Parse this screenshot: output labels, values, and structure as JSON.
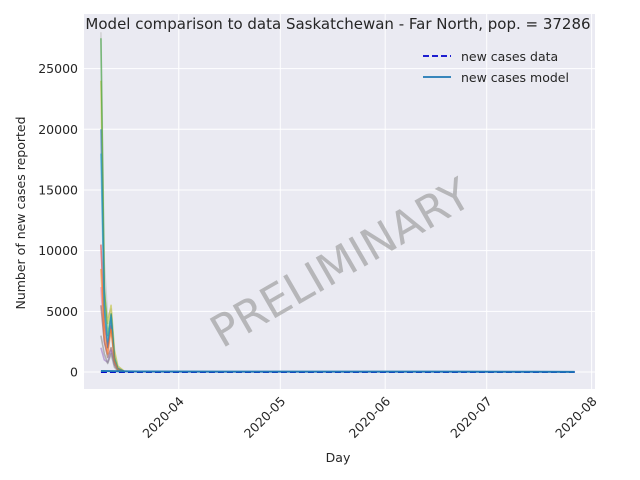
{
  "chart_data": {
    "type": "line",
    "title": "Model comparison to data Saskatchewan - Far North, pop. = 37286",
    "xlabel": "Day",
    "ylabel": "Number of new cases reported",
    "xlim": [
      "2020-03-04",
      "2020-08-02"
    ],
    "ylim": [
      -1400,
      29500
    ],
    "y_ticks": [
      0,
      5000,
      10000,
      15000,
      20000,
      25000
    ],
    "x_ticks": [
      "2020-04-01",
      "2020-05-01",
      "2020-06-01",
      "2020-07-01",
      "2020-08-01"
    ],
    "x_tick_labels": [
      "2020-04",
      "2020-05",
      "2020-06",
      "2020-07",
      "2020-08"
    ],
    "grid": true,
    "legend_position": "top-right",
    "legend": [
      "new cases data",
      "new cases model"
    ],
    "watermark": "PRELIMINARY",
    "series": [
      {
        "name": "new cases data",
        "style": "dashed",
        "color": "#0000cc",
        "x": [
          "2020-03-09",
          "2020-03-20",
          "2020-04-15",
          "2020-05-15",
          "2020-06-15",
          "2020-07-15",
          "2020-07-27"
        ],
        "values": [
          0,
          0,
          0,
          0,
          0,
          0,
          0
        ]
      },
      {
        "name": "new cases model",
        "style": "solid",
        "color": "#1f77b4",
        "x": [
          "2020-03-09",
          "2020-03-20",
          "2020-04-15",
          "2020-05-15",
          "2020-06-15",
          "2020-07-15",
          "2020-07-27"
        ],
        "values": [
          80,
          40,
          30,
          30,
          30,
          20,
          10
        ]
      }
    ],
    "ensemble": [
      {
        "color": "#bdbdbd",
        "x": [
          "2020-03-09",
          "2020-03-10",
          "2020-03-11",
          "2020-03-12",
          "2020-03-13",
          "2020-03-14",
          "2020-03-16"
        ],
        "values": [
          28000,
          9000,
          4500,
          5200,
          1500,
          400,
          50
        ]
      },
      {
        "color": "#e377c2",
        "x": [
          "2020-03-09",
          "2020-03-10",
          "2020-03-11",
          "2020-03-12",
          "2020-03-13",
          "2020-03-14",
          "2020-03-16"
        ],
        "values": [
          7000,
          2500,
          1500,
          4200,
          1000,
          300,
          30
        ]
      },
      {
        "color": "#d62728",
        "x": [
          "2020-03-09",
          "2020-03-10",
          "2020-03-11",
          "2020-03-12",
          "2020-03-13",
          "2020-03-14",
          "2020-03-16"
        ],
        "values": [
          10500,
          4000,
          2000,
          3800,
          900,
          200,
          30
        ]
      },
      {
        "color": "#bcbd22",
        "x": [
          "2020-03-09",
          "2020-03-10",
          "2020-03-11",
          "2020-03-12",
          "2020-03-13",
          "2020-03-14",
          "2020-03-16"
        ],
        "values": [
          24000,
          6500,
          4000,
          5500,
          1800,
          500,
          40
        ]
      },
      {
        "color": "#8c564b",
        "x": [
          "2020-03-09",
          "2020-03-10",
          "2020-03-11",
          "2020-03-12",
          "2020-03-13",
          "2020-03-14",
          "2020-03-16"
        ],
        "values": [
          5500,
          2500,
          1200,
          2000,
          600,
          150,
          20
        ]
      },
      {
        "color": "#9467bd",
        "x": [
          "2020-03-09",
          "2020-03-10",
          "2020-03-11",
          "2020-03-12",
          "2020-03-13",
          "2020-03-14",
          "2020-03-16"
        ],
        "values": [
          2000,
          1000,
          800,
          1800,
          700,
          200,
          20
        ]
      },
      {
        "color": "#2ca02c",
        "x": [
          "2020-03-09",
          "2020-03-10",
          "2020-03-11",
          "2020-03-12",
          "2020-03-13",
          "2020-03-14",
          "2020-03-16"
        ],
        "values": [
          27500,
          7000,
          3000,
          4800,
          1200,
          300,
          30
        ]
      },
      {
        "color": "#17becf",
        "x": [
          "2020-03-09",
          "2020-03-10",
          "2020-03-11",
          "2020-03-12",
          "2020-03-13",
          "2020-03-14",
          "2020-03-16"
        ],
        "values": [
          18000,
          5000,
          2500,
          4500,
          1100,
          250,
          30
        ]
      },
      {
        "color": "#1f77b4",
        "x": [
          "2020-03-09",
          "2020-03-10",
          "2020-03-11",
          "2020-03-12",
          "2020-03-13",
          "2020-03-14",
          "2020-03-16"
        ],
        "values": [
          20000,
          5500,
          2000,
          4700,
          1000,
          250,
          30
        ]
      },
      {
        "color": "#ff7f0e",
        "x": [
          "2020-03-09",
          "2020-03-10",
          "2020-03-11",
          "2020-03-12",
          "2020-03-13",
          "2020-03-14",
          "2020-03-16"
        ],
        "values": [
          8500,
          3000,
          1500,
          3500,
          900,
          200,
          20
        ]
      },
      {
        "color": "#7f7f7f",
        "x": [
          "2020-03-09",
          "2020-03-10",
          "2020-03-11",
          "2020-03-12",
          "2020-03-13",
          "2020-03-14",
          "2020-03-16"
        ],
        "values": [
          3000,
          1500,
          700,
          1500,
          400,
          100,
          10
        ]
      }
    ]
  }
}
